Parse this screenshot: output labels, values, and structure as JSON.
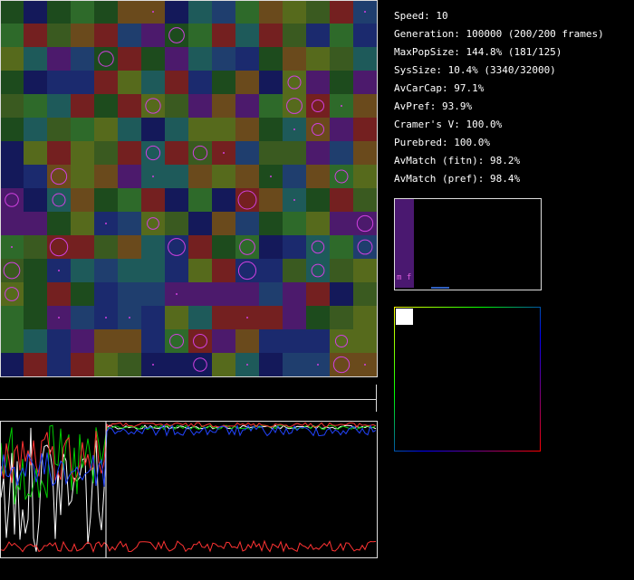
{
  "stats": [
    "Speed: 10",
    "Generation: 100000 (200/200 frames)",
    "MaxPopSize: 144.8% (181/125)",
    "SysSize: 10.4% (3340/32000)",
    "AvCarCap: 97.1%",
    "AvPref: 93.9%",
    "Cramer's V: 100.0%",
    "Purebred: 100.0%",
    "AvMatch (fitn): 98.2%",
    "AvMatch (pref): 98.4%"
  ],
  "histogram_label": "m f"
}
